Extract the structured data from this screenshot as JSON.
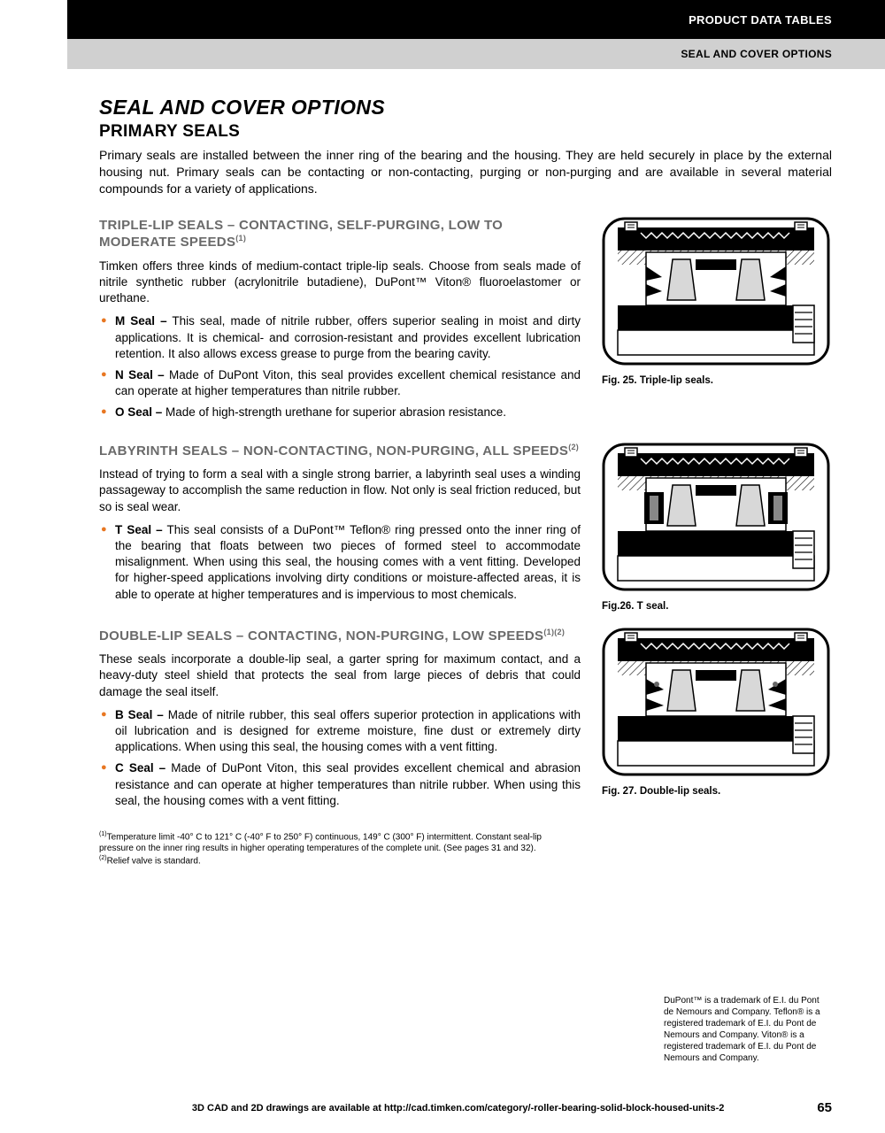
{
  "header": {
    "black": "PRODUCT DATA TABLES",
    "gray": "SEAL AND COVER OPTIONS"
  },
  "title": "SEAL AND COVER OPTIONS",
  "subtitle": "PRIMARY SEALS",
  "intro": "Primary seals are installed between the inner ring of the bearing and the housing. They are held securely in place by the external housing nut. Primary seals can be contacting or non-contacting, purging or non-purging and are available in several material compounds for a variety of applications.",
  "sections": [
    {
      "heading": "TRIPLE-LIP SEALS – CONTACTING, SELF-PURGING, LOW TO MODERATE SPEEDS",
      "heading_sup": "(1)",
      "body": "Timken offers three kinds of medium-contact triple-lip seals. Choose from seals made of nitrile synthetic rubber (acrylonitrile butadiene), DuPont™ Viton® fluoroelastomer or urethane.",
      "items": [
        {
          "label": "M Seal –",
          "text": " This seal, made of nitrile rubber, offers superior sealing in moist and dirty applications. It is chemical- and corrosion-resistant and provides excellent lubrication retention. It also allows excess grease to purge from the bearing cavity."
        },
        {
          "label": "N Seal –",
          "text": " Made of DuPont Viton, this seal provides excellent chemical resistance and can operate at higher temperatures than nitrile rubber."
        },
        {
          "label": "O Seal –",
          "text": " Made of high-strength urethane for superior abrasion resistance."
        }
      ],
      "caption": "Fig. 25. Triple-lip seals."
    },
    {
      "heading": "LABYRINTH SEALS – NON-CONTACTING, NON-PURGING, ALL SPEEDS",
      "heading_sup": "(2)",
      "body": "Instead of trying to form a seal with a single strong barrier, a labyrinth seal uses a winding passageway to accomplish the same reduction in flow. Not only is seal friction reduced, but so is seal wear.",
      "items": [
        {
          "label": "T Seal –",
          "text": " This seal consists of a DuPont™ Teflon® ring pressed onto the inner ring of the bearing that floats between two pieces of formed steel to accommodate misalignment. When using this seal, the housing comes with a vent fitting. Developed for higher-speed applications involving dirty conditions or moisture-affected areas, it is able to operate at higher temperatures and is impervious to most chemicals."
        }
      ],
      "caption": "Fig.26. T seal."
    },
    {
      "heading": "DOUBLE-LIP SEALS – CONTACTING, NON-PURGING, LOW SPEEDS",
      "heading_sup": "(1)(2)",
      "body": "These seals incorporate a double-lip seal, a garter spring for maximum contact, and a heavy-duty steel shield that protects the seal from large pieces of debris that could damage the seal itself.",
      "items": [
        {
          "label": "B Seal –",
          "text": " Made of nitrile rubber, this seal offers superior protection in applications with oil lubrication and is designed for extreme moisture, fine dust or extremely dirty applications. When using this seal, the housing comes with a vent fitting."
        },
        {
          "label": "C Seal –",
          "text": " Made of DuPont Viton, this seal provides excellent chemical and abrasion resistance and can operate at higher temperatures than nitrile rubber. When using this seal, the housing comes with a vent fitting."
        }
      ],
      "caption": "Fig. 27. Double-lip seals."
    }
  ],
  "footnotes": {
    "f1": "Temperature limit -40° C to 121° C (-40° F to 250° F) continuous, 149° C (300° F) intermittent. Constant seal-lip pressure on the inner ring results in higher operating temperatures of the complete unit. (See pages 31 and 32).",
    "f2": "Relief valve is standard."
  },
  "trademark": "DuPont™ is a trademark of E.I. du Pont de Nemours and Company. Teflon® is a registered trademark of E.I. du Pont de Nemours and Company. Viton® is a registered trademark of E.I. du Pont de Nemours and Company.",
  "footer": {
    "text": "3D CAD and 2D drawings are available at http://cad.timken.com/category/-roller-bearing-solid-block-housed-units-2",
    "page": "65"
  },
  "colors": {
    "bullet": "#e87722",
    "heading_gray": "#6a6a6a"
  }
}
